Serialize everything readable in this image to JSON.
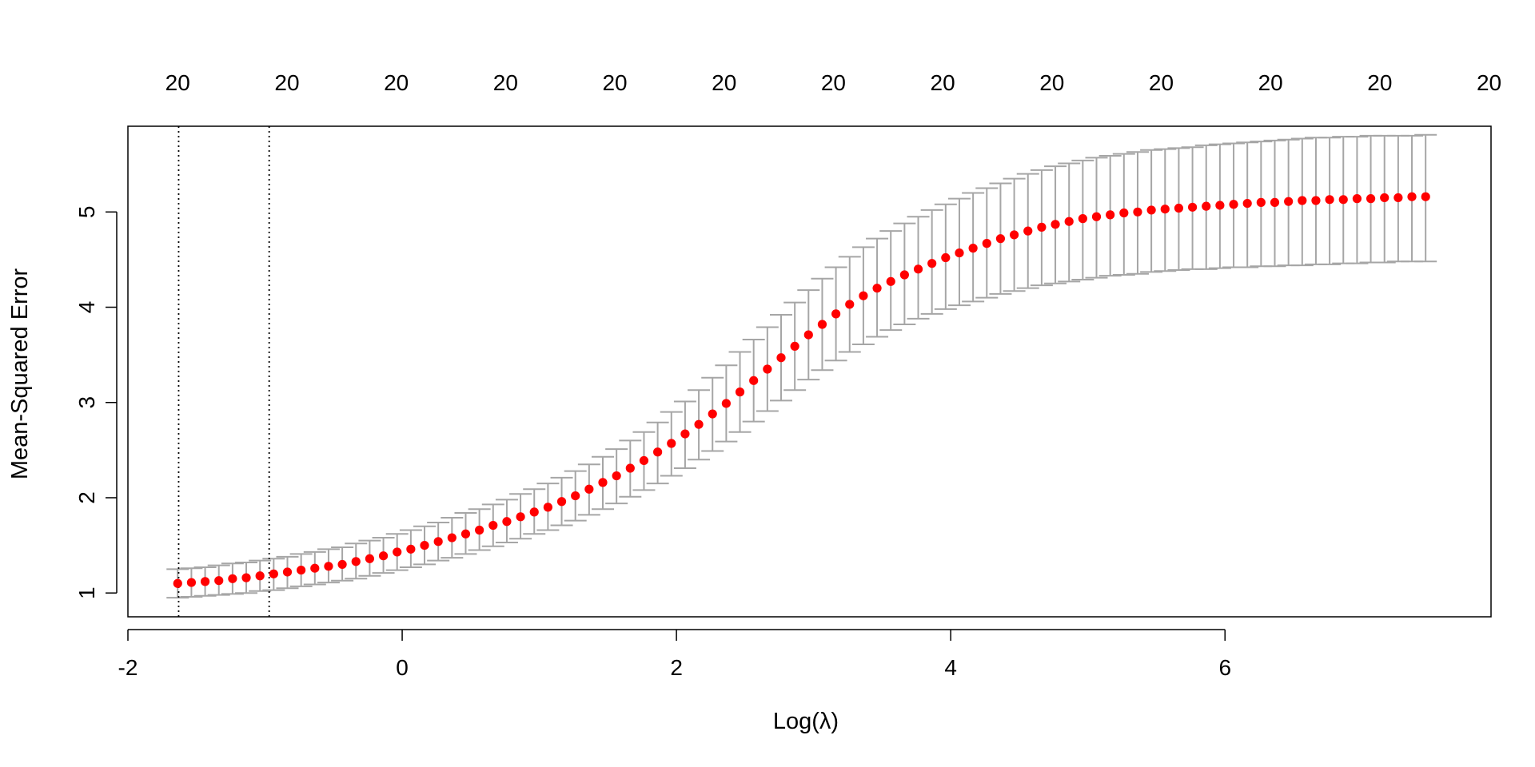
{
  "chart_data": {
    "type": "scatter",
    "title": "",
    "xlabel": "Log(λ)",
    "ylabel": "Mean-Squared Error",
    "xlim": [
      -2.0,
      7.94
    ],
    "ylim": [
      0.75,
      5.9
    ],
    "x_ticks": [
      "-2",
      "0",
      "2",
      "4",
      "6"
    ],
    "y_ticks": [
      "1",
      "2",
      "3",
      "4",
      "5"
    ],
    "top_axis_labels": [
      "20",
      "20",
      "20",
      "20",
      "20",
      "20",
      "20",
      "20",
      "20",
      "20",
      "20",
      "20",
      "20",
      "20",
      "20",
      "20",
      "20",
      "20",
      "20",
      "20"
    ],
    "grid": false,
    "legend": "none",
    "colors": {
      "points": "#ff0000",
      "error_bars": "#a6a6a6",
      "reference_lines": "#000000",
      "axes": "#000000"
    },
    "reference_lines_x": [
      -1.63,
      -0.97
    ],
    "x": [
      -1.637,
      -1.537,
      -1.437,
      -1.337,
      -1.237,
      -1.137,
      -1.037,
      -0.937,
      -0.837,
      -0.737,
      -0.637,
      -0.537,
      -0.437,
      -0.337,
      -0.237,
      -0.137,
      -0.037,
      0.063,
      0.163,
      0.263,
      0.363,
      0.463,
      0.563,
      0.663,
      0.763,
      0.863,
      0.963,
      1.063,
      1.163,
      1.263,
      1.363,
      1.463,
      1.563,
      1.663,
      1.763,
      1.863,
      1.963,
      2.063,
      2.163,
      2.263,
      2.363,
      2.463,
      2.563,
      2.663,
      2.763,
      2.863,
      2.963,
      3.063,
      3.163,
      3.263,
      3.363,
      3.463,
      3.563,
      3.663,
      3.763,
      3.863,
      3.963,
      4.063,
      4.163,
      4.263,
      4.363,
      4.463,
      4.563,
      4.663,
      4.763,
      4.863,
      4.963,
      5.063,
      5.163,
      5.263,
      5.363,
      5.463,
      5.563,
      5.663,
      5.763,
      5.863,
      5.963,
      6.063,
      6.163,
      6.263,
      6.363,
      6.463,
      6.563,
      6.663,
      6.763,
      6.863,
      6.963,
      7.063,
      7.163,
      7.263,
      7.363,
      7.463
    ],
    "y": [
      1.1,
      1.11,
      1.12,
      1.13,
      1.15,
      1.16,
      1.18,
      1.2,
      1.22,
      1.24,
      1.26,
      1.28,
      1.3,
      1.33,
      1.36,
      1.39,
      1.43,
      1.46,
      1.5,
      1.54,
      1.58,
      1.62,
      1.66,
      1.71,
      1.75,
      1.8,
      1.85,
      1.9,
      1.96,
      2.02,
      2.09,
      2.16,
      2.23,
      2.31,
      2.39,
      2.48,
      2.57,
      2.67,
      2.77,
      2.88,
      2.99,
      3.11,
      3.23,
      3.35,
      3.47,
      3.59,
      3.71,
      3.82,
      3.93,
      4.03,
      4.12,
      4.2,
      4.27,
      4.34,
      4.4,
      4.46,
      4.52,
      4.57,
      4.62,
      4.67,
      4.72,
      4.76,
      4.8,
      4.84,
      4.87,
      4.9,
      4.93,
      4.95,
      4.97,
      4.99,
      5.0,
      5.02,
      5.03,
      5.04,
      5.05,
      5.06,
      5.07,
      5.08,
      5.09,
      5.1,
      5.1,
      5.11,
      5.12,
      5.12,
      5.13,
      5.13,
      5.14,
      5.14,
      5.15,
      5.15,
      5.16,
      5.16
    ],
    "error_low": [
      0.95,
      0.96,
      0.97,
      0.98,
      0.99,
      1.0,
      1.02,
      1.03,
      1.05,
      1.07,
      1.09,
      1.11,
      1.13,
      1.15,
      1.18,
      1.21,
      1.24,
      1.27,
      1.3,
      1.34,
      1.37,
      1.41,
      1.45,
      1.49,
      1.53,
      1.57,
      1.62,
      1.66,
      1.71,
      1.76,
      1.82,
      1.88,
      1.94,
      2.01,
      2.08,
      2.15,
      2.23,
      2.31,
      2.4,
      2.49,
      2.59,
      2.69,
      2.8,
      2.91,
      3.02,
      3.13,
      3.24,
      3.34,
      3.44,
      3.53,
      3.61,
      3.69,
      3.76,
      3.82,
      3.88,
      3.93,
      3.98,
      4.02,
      4.06,
      4.1,
      4.14,
      4.17,
      4.2,
      4.23,
      4.25,
      4.27,
      4.29,
      4.31,
      4.33,
      4.34,
      4.35,
      4.37,
      4.38,
      4.39,
      4.4,
      4.4,
      4.41,
      4.42,
      4.42,
      4.43,
      4.43,
      4.44,
      4.44,
      4.45,
      4.45,
      4.46,
      4.46,
      4.47,
      4.47,
      4.48,
      4.48,
      4.48
    ],
    "error_high": [
      1.25,
      1.26,
      1.27,
      1.29,
      1.31,
      1.32,
      1.34,
      1.36,
      1.38,
      1.41,
      1.43,
      1.46,
      1.48,
      1.52,
      1.55,
      1.58,
      1.62,
      1.66,
      1.7,
      1.74,
      1.79,
      1.84,
      1.88,
      1.93,
      1.98,
      2.04,
      2.09,
      2.15,
      2.21,
      2.28,
      2.35,
      2.43,
      2.51,
      2.6,
      2.69,
      2.79,
      2.9,
      3.01,
      3.13,
      3.26,
      3.39,
      3.53,
      3.66,
      3.79,
      3.92,
      4.05,
      4.18,
      4.3,
      4.42,
      4.53,
      4.63,
      4.72,
      4.8,
      4.88,
      4.95,
      5.02,
      5.08,
      5.14,
      5.2,
      5.25,
      5.3,
      5.35,
      5.4,
      5.44,
      5.48,
      5.51,
      5.54,
      5.57,
      5.59,
      5.61,
      5.63,
      5.65,
      5.66,
      5.67,
      5.68,
      5.7,
      5.71,
      5.72,
      5.73,
      5.74,
      5.75,
      5.76,
      5.77,
      5.78,
      5.78,
      5.79,
      5.79,
      5.8,
      5.8,
      5.8,
      5.8,
      5.81
    ]
  }
}
